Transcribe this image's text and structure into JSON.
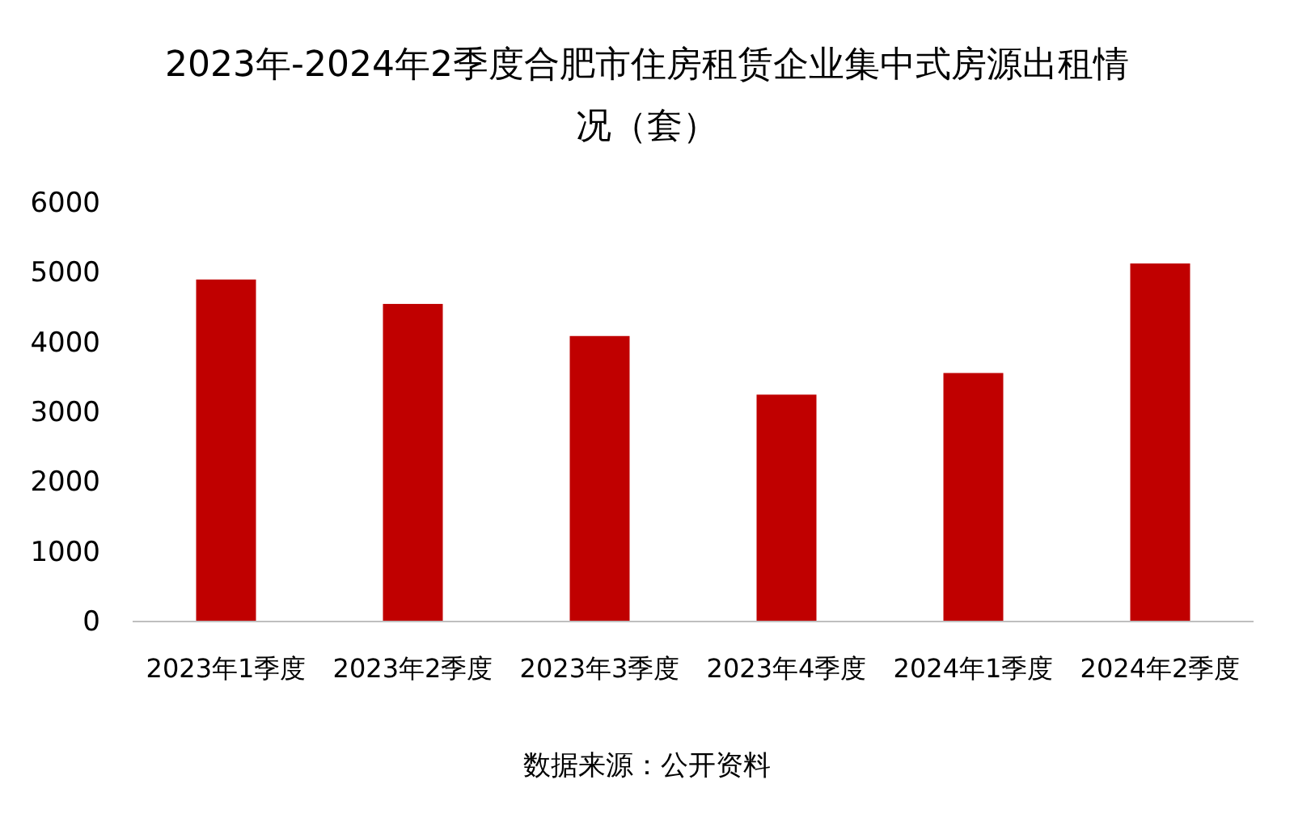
{
  "chart_data": {
    "type": "bar",
    "title": "2023年-2024年2季度合肥市住房租赁企业集中式房源出租情况（套）",
    "categories": [
      "2023年1季度",
      "2023年2季度",
      "2023年3季度",
      "2023年4季度",
      "2024年1季度",
      "2024年2季度"
    ],
    "values": [
      4890,
      4540,
      4080,
      3240,
      3550,
      5120
    ],
    "color": "#c00000",
    "ylim": [
      0,
      6000
    ],
    "yticks": [
      0,
      1000,
      2000,
      3000,
      4000,
      5000,
      6000
    ],
    "grid": false,
    "annotations": [
      "数据来源：公开资料"
    ]
  }
}
